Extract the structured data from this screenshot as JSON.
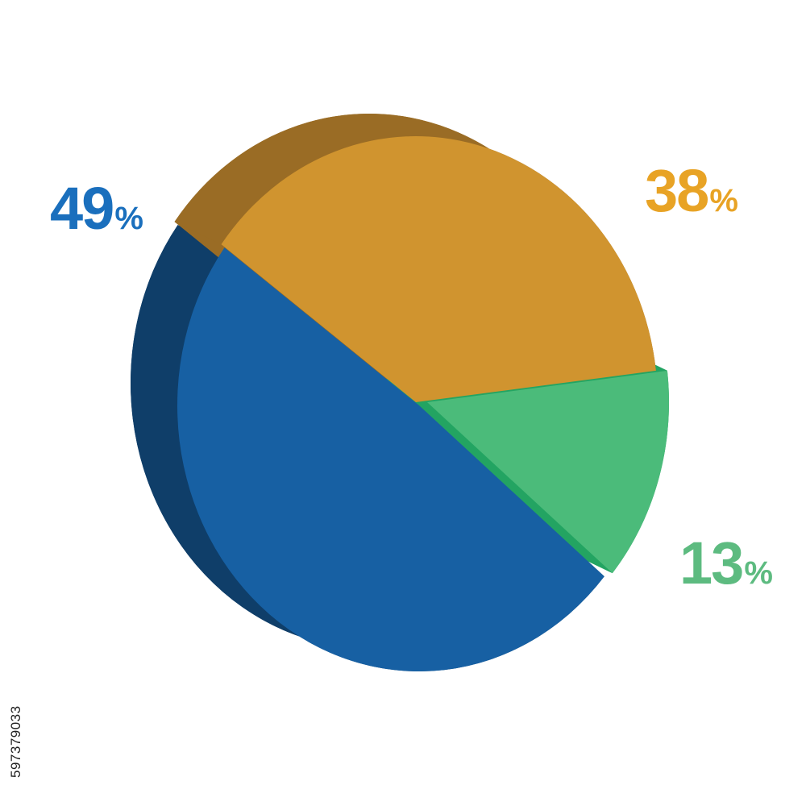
{
  "chart_data": {
    "type": "pie",
    "title": "",
    "slices": [
      {
        "value": 49,
        "label": "49",
        "unit": "%",
        "color": "#1760a3",
        "side_color": "#0f3e69"
      },
      {
        "value": 38,
        "label": "38",
        "unit": "%",
        "color": "#d0942f",
        "side_color": "#9a6c25"
      },
      {
        "value": 13,
        "label": "13",
        "unit": "%",
        "color": "#4bbb7a",
        "side_color": "#23a462"
      }
    ],
    "label_colors": [
      "#1a6fbd",
      "#e8a325",
      "#5dbb80"
    ],
    "style": "3d-tilted"
  },
  "watermark": {
    "side_id": "597379033"
  }
}
